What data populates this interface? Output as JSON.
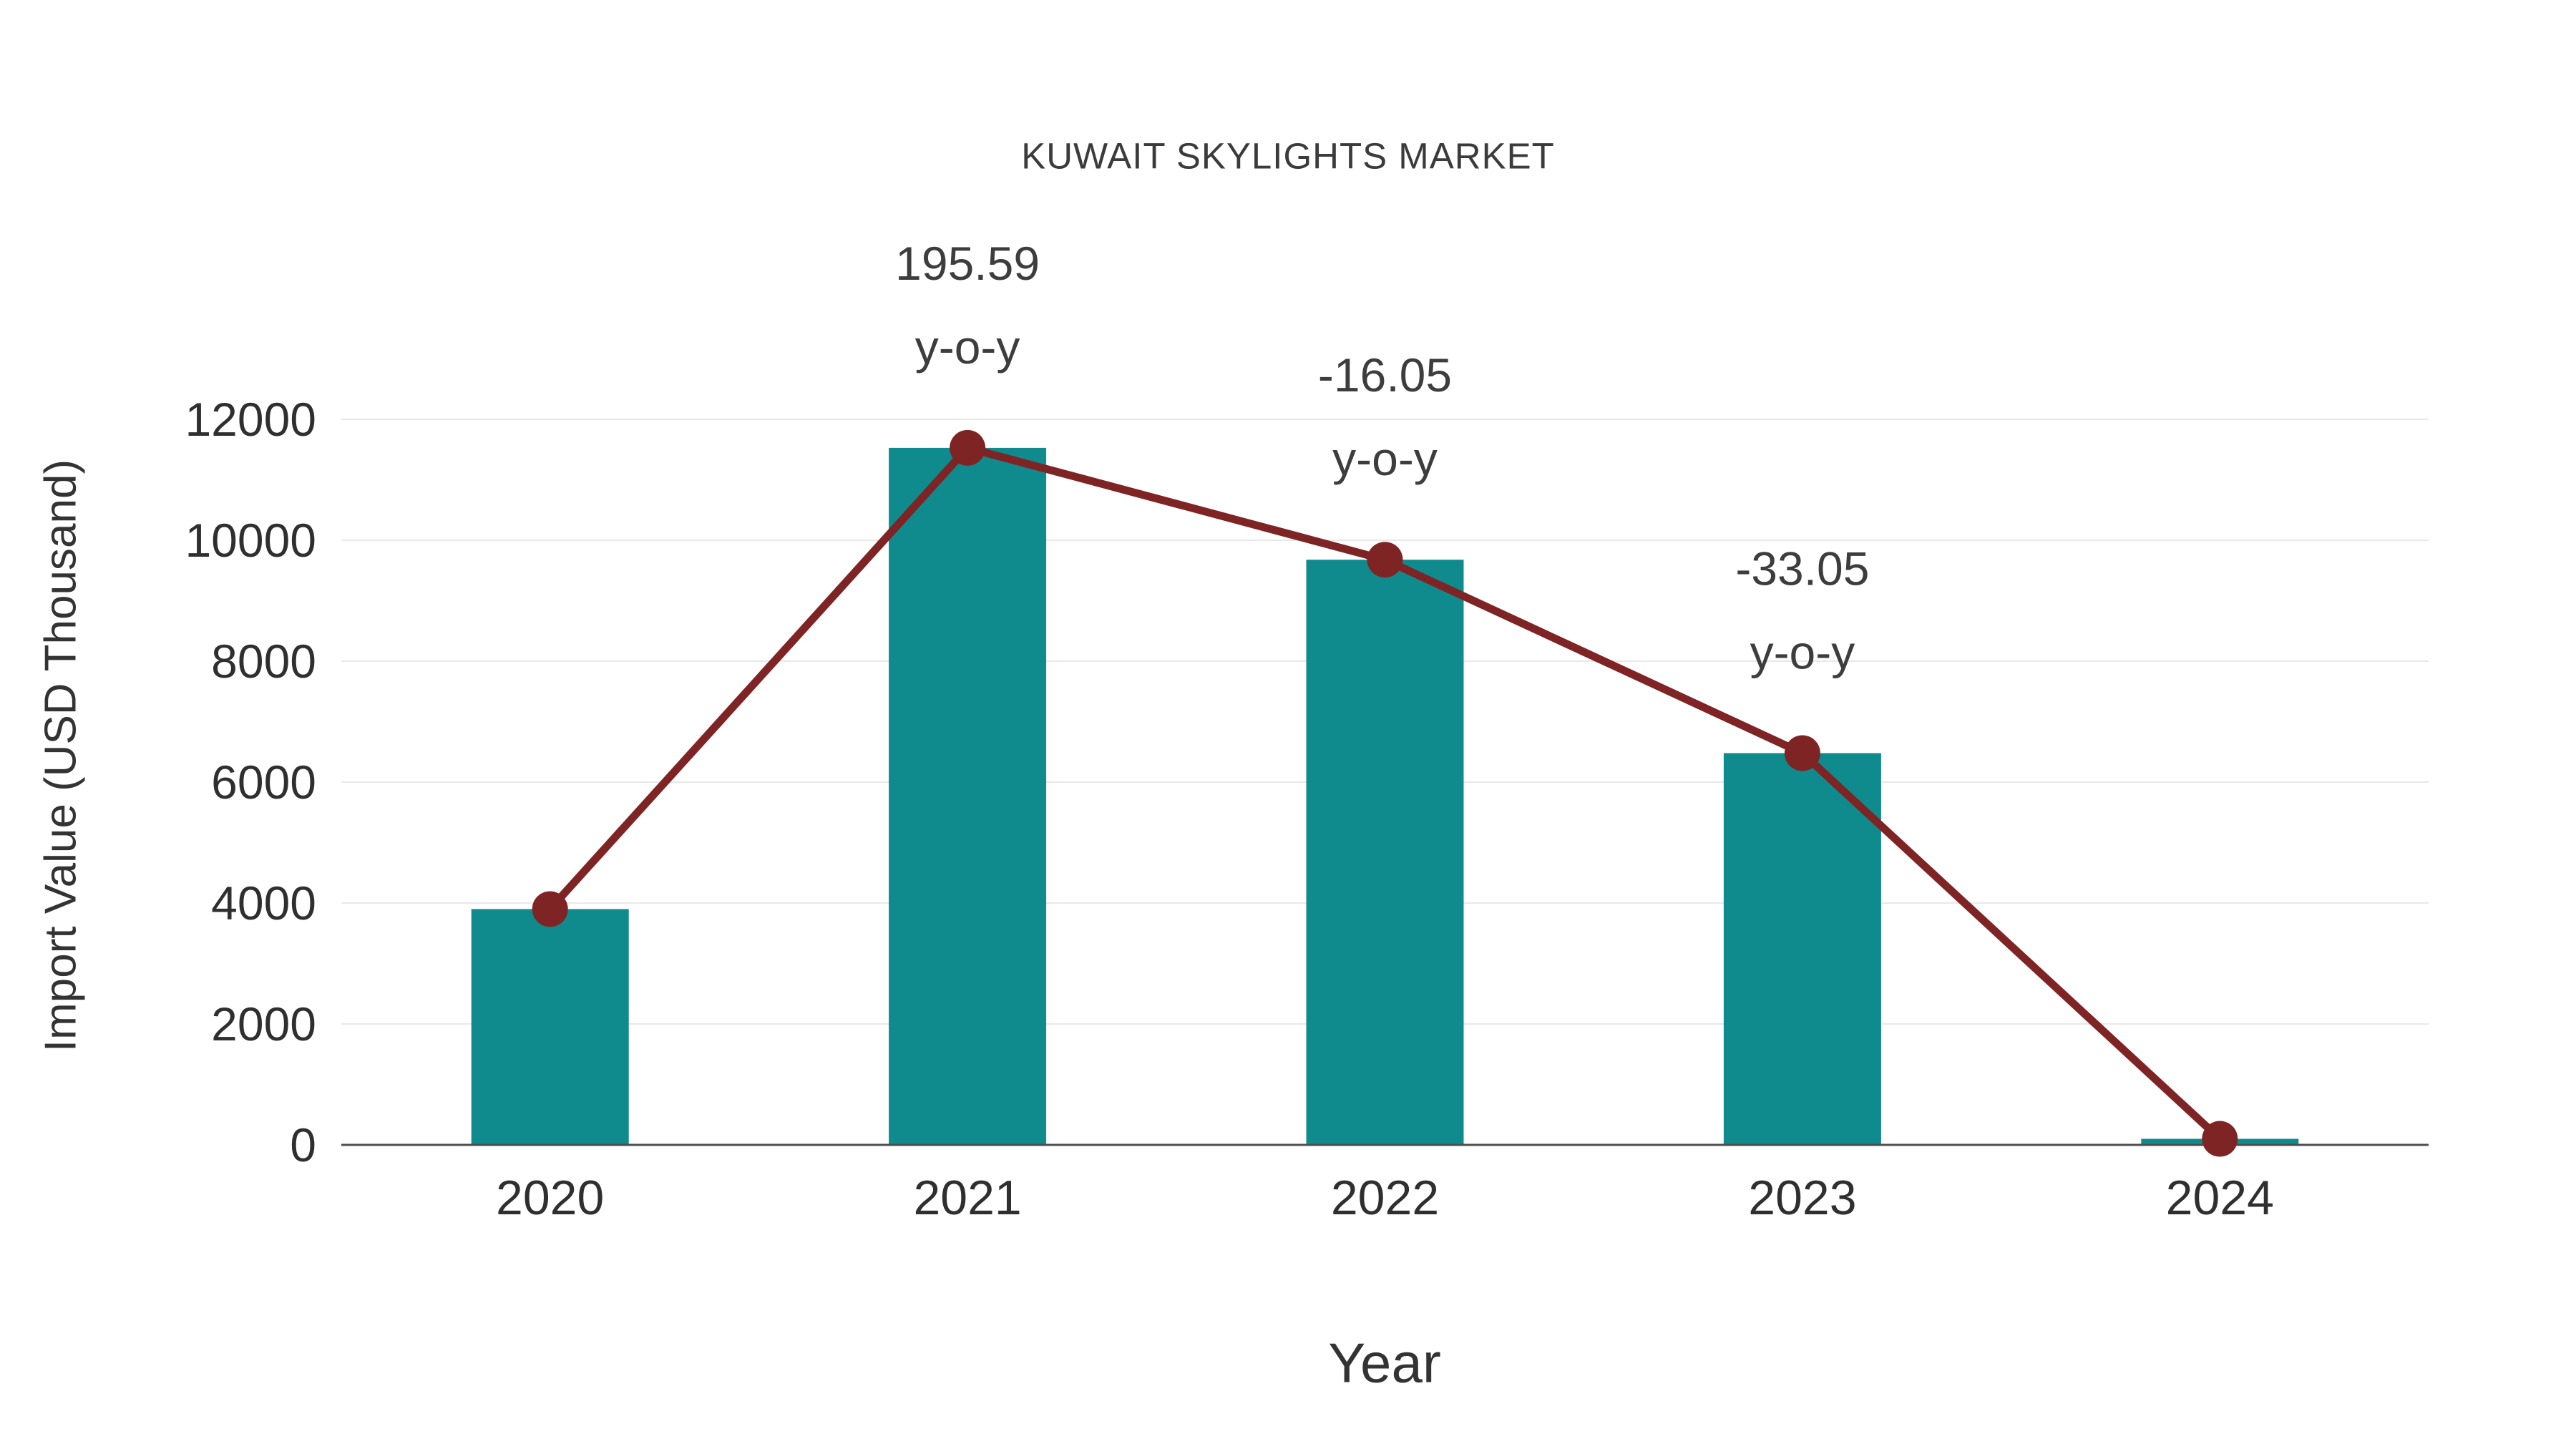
{
  "chart_data": {
    "type": "bar",
    "title": "KUWAIT SKYLIGHTS MARKET",
    "xlabel": "Year",
    "ylabel": "Import Value (USD Thousand)",
    "categories": [
      "2020",
      "2021",
      "2022",
      "2023",
      "2024"
    ],
    "series": [
      {
        "name": "Import Value (USD Thousand)",
        "render_as": "bar-with-line-overlay",
        "values": [
          3900,
          11528,
          9678,
          6479,
          100
        ]
      }
    ],
    "annotations": [
      {
        "category": "2021",
        "value_label": "195.59",
        "suffix": "y-o-y"
      },
      {
        "category": "2022",
        "value_label": "-16.05",
        "suffix": "y-o-y"
      },
      {
        "category": "2023",
        "value_label": "-33.05",
        "suffix": "y-o-y"
      }
    ],
    "yticks": [
      0,
      2000,
      4000,
      6000,
      8000,
      10000,
      12000
    ],
    "ylim": [
      0,
      12000
    ],
    "grid": true,
    "legend_position": "none",
    "colors": {
      "bar": "#0f8b8d",
      "line": "#7e2425",
      "grid": "#e8e8e8",
      "axis": "#4d4d4d",
      "tick_text": "#2f2f2f",
      "annotation_text": "#3d3d3d"
    }
  }
}
